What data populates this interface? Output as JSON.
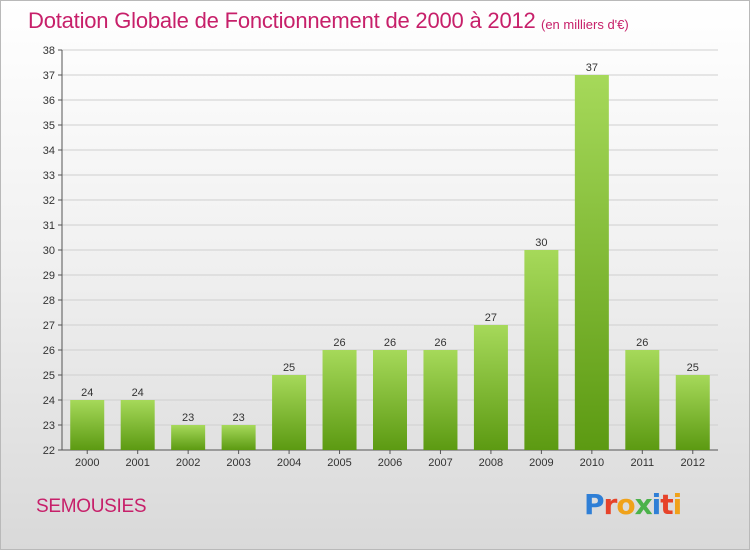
{
  "colors": {
    "accent": "#c7206a",
    "bar_top": "#a6d95a",
    "bar_bottom": "#5c9a12",
    "grid": "#cfcfcf",
    "logo": [
      "#2f7fd6",
      "#e6432a",
      "#f0a21a",
      "#4bb24a",
      "#2f7fd6",
      "#e6432a",
      "#f0a21a"
    ]
  },
  "footer": {
    "place": "SEMOUSIES",
    "logo": "Proxiti"
  },
  "chart_data": {
    "type": "bar",
    "title": "Dotation Globale de Fonctionnement de 2000 à 2012",
    "unit": "(en milliers d'€)",
    "xlabel": "",
    "ylabel": "",
    "categories": [
      "2000",
      "2001",
      "2002",
      "2003",
      "2004",
      "2005",
      "2006",
      "2007",
      "2008",
      "2009",
      "2010",
      "2011",
      "2012"
    ],
    "values": [
      24,
      24,
      23,
      23,
      25,
      26,
      26,
      26,
      27,
      30,
      37,
      26,
      25
    ],
    "value_labels": [
      "24",
      "24",
      "23",
      "23",
      "25",
      "26",
      "26",
      "26",
      "27",
      "30",
      "37",
      "26",
      "25"
    ],
    "ylim": [
      22,
      38
    ],
    "yticks": [
      "22",
      "23",
      "24",
      "25",
      "26",
      "27",
      "28",
      "29",
      "30",
      "31",
      "32",
      "33",
      "34",
      "35",
      "36",
      "37",
      "38"
    ],
    "grid": true,
    "legend": "none"
  }
}
